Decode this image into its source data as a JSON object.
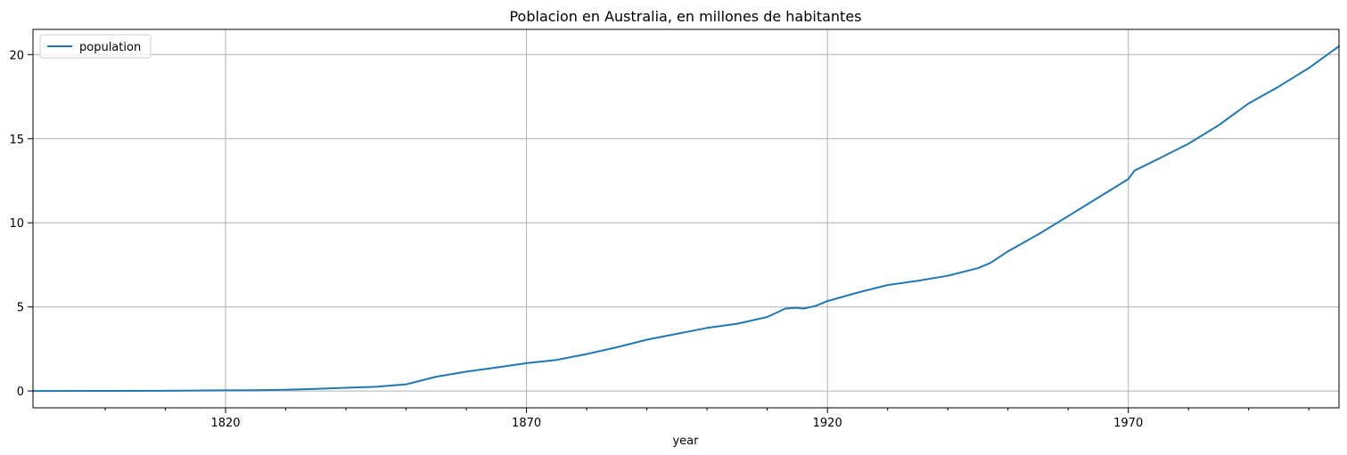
{
  "chart_data": {
    "type": "line",
    "title": "Poblacion en Australia, en millones de habitantes",
    "xlabel": "year",
    "ylabel": "",
    "xlim": [
      1788,
      2005
    ],
    "ylim": [
      -1.0,
      21.5
    ],
    "x_major_ticks": [
      1820,
      1870,
      1920,
      1970
    ],
    "x_minor_ticks": [
      1800,
      1810,
      1830,
      1840,
      1850,
      1860,
      1880,
      1890,
      1900,
      1910,
      1930,
      1940,
      1950,
      1960,
      1980,
      1990,
      2000
    ],
    "y_ticks": [
      0,
      5,
      10,
      15,
      20
    ],
    "grid": true,
    "legend": {
      "placement": "top-left"
    },
    "series": [
      {
        "name": "population",
        "color": "#1f77b4",
        "x": [
          1788,
          1800,
          1810,
          1820,
          1825,
          1830,
          1835,
          1840,
          1845,
          1850,
          1855,
          1860,
          1865,
          1870,
          1875,
          1880,
          1885,
          1890,
          1895,
          1900,
          1905,
          1910,
          1913,
          1915,
          1916,
          1918,
          1920,
          1925,
          1930,
          1935,
          1940,
          1945,
          1947,
          1950,
          1955,
          1960,
          1965,
          1970,
          1971,
          1975,
          1980,
          1985,
          1990,
          1995,
          2000,
          2005
        ],
        "values": [
          0.0,
          0.005,
          0.012,
          0.035,
          0.05,
          0.07,
          0.13,
          0.19,
          0.25,
          0.4,
          0.85,
          1.15,
          1.4,
          1.65,
          1.85,
          2.2,
          2.6,
          3.05,
          3.4,
          3.75,
          4.0,
          4.4,
          4.9,
          4.95,
          4.9,
          5.05,
          5.35,
          5.85,
          6.3,
          6.55,
          6.85,
          7.3,
          7.6,
          8.3,
          9.3,
          10.4,
          11.5,
          12.6,
          13.1,
          13.8,
          14.7,
          15.8,
          17.1,
          18.1,
          19.2,
          20.5
        ]
      }
    ]
  }
}
